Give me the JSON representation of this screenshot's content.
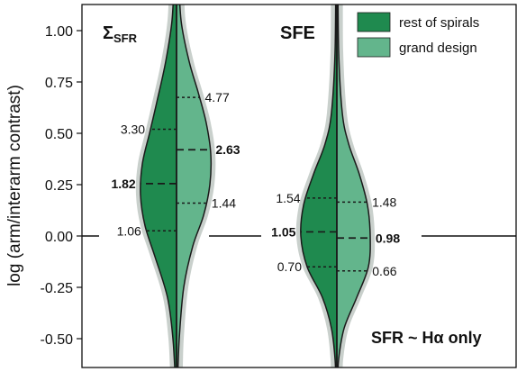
{
  "chart_data": {
    "type": "violin",
    "ylabel": "log (arm/interarm contrast)",
    "ylim": [
      -0.62,
      1.12
    ],
    "yticks": [
      "1.00",
      "0.75",
      "0.50",
      "0.25",
      "0.00",
      "-0.25",
      "-0.50"
    ],
    "ytick_values": [
      1.0,
      0.75,
      0.5,
      0.25,
      0.0,
      -0.25,
      -0.5
    ],
    "reference_line_y": 0.0,
    "legend": {
      "placement": "top-right",
      "entries": [
        {
          "label": "rest of spirals",
          "color": "#1f8a4f"
        },
        {
          "label": "grand design",
          "color": "#63b58c"
        }
      ]
    },
    "annotation": "SFR ~ Hα only",
    "panels": [
      {
        "title_main": "Σ",
        "title_sub": "SFR",
        "left_series": {
          "name": "rest of spirals",
          "quartiles": [
            {
              "y": 0.025,
              "label": "1.06",
              "bold": false
            },
            {
              "y": 0.255,
              "label": "1.82",
              "bold": true
            },
            {
              "y": 0.52,
              "label": "3.30",
              "bold": false
            }
          ]
        },
        "right_series": {
          "name": "grand design",
          "quartiles": [
            {
              "y": 0.16,
              "label": "1.44",
              "bold": false
            },
            {
              "y": 0.42,
              "label": "2.63",
              "bold": true
            },
            {
              "y": 0.675,
              "label": "4.77",
              "bold": false
            }
          ]
        }
      },
      {
        "title_main": "SFE",
        "title_sub": "",
        "left_series": {
          "name": "rest of spirals",
          "quartiles": [
            {
              "y": -0.15,
              "label": "0.70",
              "bold": false
            },
            {
              "y": 0.02,
              "label": "1.05",
              "bold": true
            },
            {
              "y": 0.185,
              "label": "1.54",
              "bold": false
            }
          ]
        },
        "right_series": {
          "name": "grand design",
          "quartiles": [
            {
              "y": -0.17,
              "label": "0.66",
              "bold": false
            },
            {
              "y": -0.01,
              "label": "0.98",
              "bold": true
            },
            {
              "y": 0.165,
              "label": "1.48",
              "bold": false
            }
          ]
        }
      }
    ]
  },
  "colors": {
    "rest_of_spirals": "#1f8a4f",
    "grand_design": "#63b58c",
    "shadow": "#c3cbc6"
  }
}
